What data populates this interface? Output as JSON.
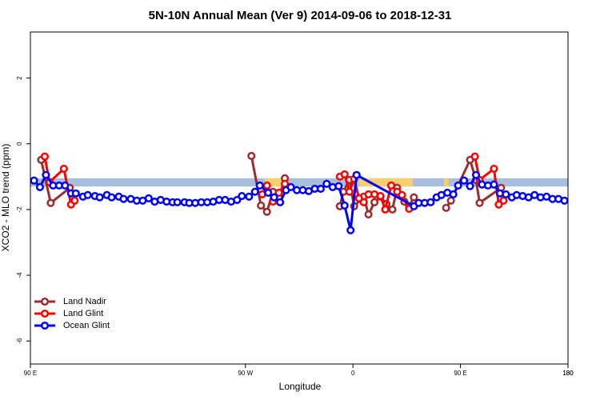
{
  "chart_data": {
    "type": "line",
    "title": "5N-10N Annual Mean (Ver 9)   2014-09-06 to 2018-12-31",
    "x_label": "Longitude",
    "y_label": "XCO2 - MLO trend (ppm)",
    "xlim": [
      90,
      540
    ],
    "ylim": [
      -6.7,
      3.4
    ],
    "xticks": [
      {
        "value": 90,
        "label": "90 E"
      },
      180,
      {
        "value": 270,
        "label": "90 W"
      },
      {
        "value": 360,
        "label": "0"
      },
      {
        "value": 450,
        "label": "90 E"
      },
      180
    ],
    "yticks": [
      -6,
      -4,
      -2,
      0,
      2
    ],
    "legend": "bottom-left",
    "band": {
      "ylim": [
        -1.05,
        -1.3
      ],
      "color": "#a7bfdd"
    },
    "land_spans": {
      "color": "#f6cf6e",
      "x": [
        [
          286,
          300
        ],
        [
          365,
          410
        ],
        [
          436,
          440
        ]
      ]
    },
    "series": [
      {
        "name": "Land Nadir",
        "color": "#9b2d2d",
        "x": [
          99,
          107,
          123,
          200,
          275,
          283,
          288,
          293,
          298,
          303,
          330,
          349,
          352,
          357,
          361,
          369,
          373,
          378,
          383,
          388,
          393,
          397,
          403,
          407,
          411,
          420,
          438,
          442,
          458,
          463,
          466,
          484
        ],
        "values": [
          -0.49,
          -1.8,
          -1.34,
          null,
          -0.37,
          -1.88,
          -2.07,
          -1.46,
          -1.63,
          -1.05,
          null,
          -1.9,
          -1.46,
          -1.1,
          -1.9,
          -1.61,
          -2.15,
          -1.78,
          -1.61,
          -1.83,
          -2.0,
          -1.34,
          -1.76,
          -1.9,
          -1.63,
          null,
          -1.95,
          -1.73,
          -0.49,
          -1.1,
          -1.8,
          -1.34
        ]
      },
      {
        "name": "Land Glint",
        "color": "#ff0000",
        "x": [
          102,
          106,
          118,
          124,
          127,
          200,
          284,
          288,
          293,
          298,
          303,
          330,
          349,
          353,
          357,
          361,
          365,
          369,
          373,
          378,
          383,
          387,
          392,
          397,
          401,
          407,
          440,
          462,
          466,
          478,
          482,
          486
        ],
        "values": [
          -0.39,
          -1.17,
          -0.76,
          -1.85,
          -1.73,
          null,
          -1.54,
          -1.27,
          -1.76,
          -1.49,
          -1.22,
          null,
          -1.0,
          -0.93,
          -1.46,
          -1.07,
          -1.66,
          -1.78,
          -1.54,
          -1.54,
          -1.59,
          -2.0,
          -1.27,
          -1.46,
          -1.56,
          -1.98,
          null,
          -0.39,
          -1.1,
          -0.76,
          -1.85,
          -1.73
        ]
      },
      {
        "name": "Ocean Glint",
        "color": "#0000ff",
        "x": [
          93,
          98,
          103,
          109,
          114,
          119,
          124,
          128,
          134,
          138,
          144,
          148,
          154,
          158,
          164,
          168,
          174,
          179,
          184,
          189,
          194,
          199,
          204,
          209,
          213,
          219,
          223,
          228,
          233,
          238,
          243,
          248,
          253,
          258,
          263,
          267,
          273,
          278,
          282,
          289,
          294,
          299,
          304,
          308,
          313,
          318,
          323,
          328,
          333,
          338,
          343,
          348,
          353,
          358,
          363,
          411,
          415,
          420,
          425,
          430,
          434,
          439,
          444,
          448,
          453,
          458,
          463,
          468,
          473,
          478,
          483,
          488,
          493,
          497,
          502,
          507,
          512,
          517,
          522,
          527,
          532,
          537
        ],
        "values": [
          -1.12,
          -1.32,
          -0.95,
          -1.27,
          -1.27,
          -1.27,
          -1.51,
          -1.51,
          -1.61,
          -1.56,
          -1.59,
          -1.63,
          -1.56,
          -1.63,
          -1.61,
          -1.68,
          -1.68,
          -1.73,
          -1.73,
          -1.66,
          -1.76,
          -1.71,
          -1.76,
          -1.78,
          -1.78,
          -1.78,
          -1.8,
          -1.8,
          -1.78,
          -1.78,
          -1.76,
          -1.71,
          -1.71,
          -1.76,
          -1.71,
          -1.59,
          -1.61,
          -1.46,
          -1.27,
          -1.49,
          -1.63,
          -1.78,
          -1.41,
          -1.32,
          -1.41,
          -1.41,
          -1.44,
          -1.37,
          -1.37,
          -1.22,
          -1.32,
          -1.29,
          -1.88,
          -2.63,
          -0.95,
          -1.9,
          -1.8,
          -1.8,
          -1.78,
          -1.63,
          -1.56,
          -1.49,
          -1.54,
          -1.27,
          -1.12,
          -1.29,
          -0.95,
          -1.24,
          -1.27,
          -1.24,
          -1.51,
          -1.54,
          -1.63,
          -1.56,
          -1.59,
          -1.63,
          -1.56,
          -1.63,
          -1.61,
          -1.68,
          -1.68,
          -1.73
        ]
      }
    ]
  }
}
